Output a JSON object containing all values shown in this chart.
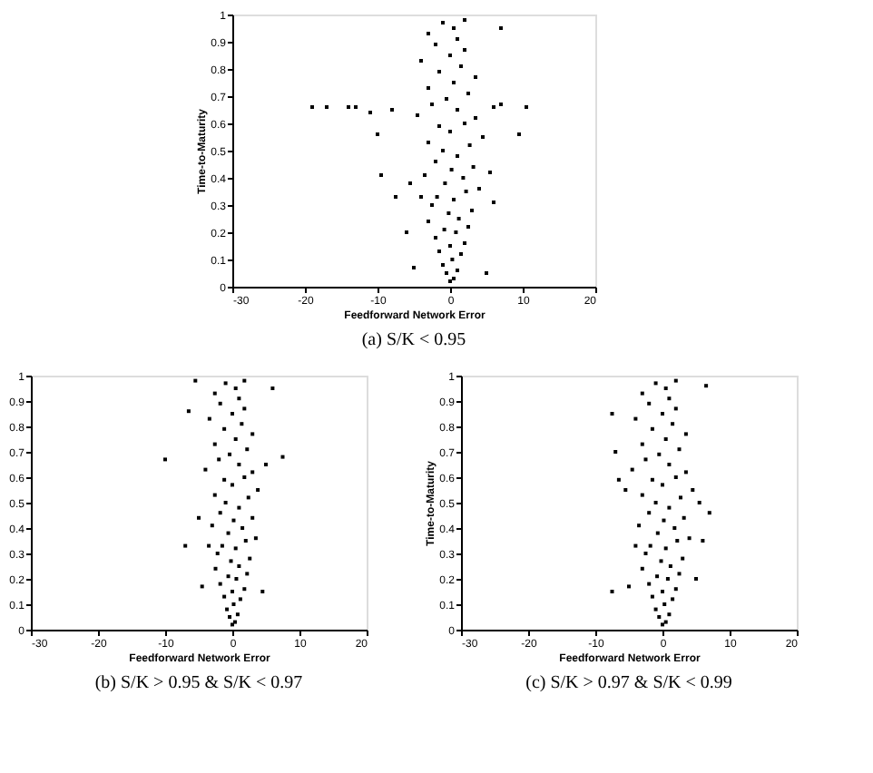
{
  "chart_data": [
    {
      "type": "scatter",
      "title": "(a)  S/K < 0.95",
      "xlabel": "Feedforward Network Error",
      "ylabel": "Time-to-Maturity",
      "color": "#000000",
      "marker": "square",
      "xlim": [
        -30,
        20
      ],
      "ylim": [
        0,
        1
      ],
      "xticks": [
        -30,
        -20,
        -10,
        0,
        10,
        20
      ],
      "yticks": [
        0,
        0.1,
        0.2,
        0.3,
        0.4,
        0.5,
        0.6,
        0.7,
        0.8,
        0.9,
        1
      ],
      "x": [
        0,
        0.5,
        -0.5,
        1,
        -1,
        0.3,
        1.5,
        -1.5,
        0,
        2,
        -2,
        0.8,
        -0.8,
        2.5,
        -3,
        1.2,
        -0.2,
        3,
        -2.5,
        0.5,
        -1.8,
        2.2,
        -4,
        4,
        -0.7,
        1.8,
        -3.5,
        0.2,
        3.2,
        -2,
        1,
        -1,
        2.7,
        -3,
        4.5,
        0,
        -1.5,
        2,
        3.5,
        -4.5,
        1,
        -2.5,
        6,
        -0.5,
        2.5,
        -3,
        0.5,
        3.5,
        -1.5,
        1.5,
        -4,
        0,
        2,
        -2,
        1,
        -3,
        0.5,
        -1,
        2,
        -19,
        -17,
        -14,
        -13,
        -11,
        -10,
        -9.5,
        -8,
        -7.5,
        10.5,
        9.5,
        7,
        6,
        -5,
        5,
        -6,
        5.5,
        -5.5,
        7
      ],
      "values": [
        0.02,
        0.03,
        0.05,
        0.06,
        0.08,
        0.1,
        0.12,
        0.13,
        0.15,
        0.16,
        0.18,
        0.2,
        0.21,
        0.22,
        0.24,
        0.25,
        0.27,
        0.28,
        0.3,
        0.32,
        0.33,
        0.35,
        0.33,
        0.36,
        0.38,
        0.4,
        0.41,
        0.43,
        0.44,
        0.46,
        0.48,
        0.5,
        0.52,
        0.53,
        0.55,
        0.57,
        0.59,
        0.6,
        0.62,
        0.63,
        0.65,
        0.67,
        0.66,
        0.69,
        0.71,
        0.73,
        0.75,
        0.77,
        0.79,
        0.81,
        0.83,
        0.85,
        0.87,
        0.89,
        0.91,
        0.93,
        0.95,
        0.97,
        0.98,
        0.66,
        0.66,
        0.66,
        0.66,
        0.64,
        0.56,
        0.41,
        0.65,
        0.33,
        0.66,
        0.56,
        0.67,
        0.31,
        0.07,
        0.05,
        0.2,
        0.42,
        0.38,
        0.95
      ]
    },
    {
      "type": "scatter",
      "title": "(b)  S/K > 0.95 & S/K < 0.97",
      "xlabel": "Feedforward Network Error",
      "color": "#000000",
      "marker": "square",
      "xlim": [
        -30,
        20
      ],
      "ylim": [
        0,
        1
      ],
      "xticks": [
        -30,
        -20,
        -10,
        0,
        10,
        20
      ],
      "yticks": [
        0,
        0.1,
        0.2,
        0.3,
        0.4,
        0.5,
        0.6,
        0.7,
        0.8,
        0.9,
        1
      ],
      "x": [
        0,
        0.4,
        -0.4,
        0.8,
        -0.8,
        0.2,
        1.2,
        -1.2,
        0,
        1.8,
        -1.8,
        0.6,
        -0.6,
        2.2,
        -2.5,
        1,
        -0.2,
        2.6,
        -2.2,
        0.5,
        -1.5,
        2,
        -3.5,
        3.5,
        -0.6,
        1.5,
        -3,
        0.2,
        3,
        -1.8,
        1,
        -1,
        2.4,
        -2.6,
        3.8,
        0,
        -1.2,
        1.8,
        3,
        -4,
        1,
        -2,
        -0.4,
        2.2,
        -2.6,
        0.5,
        3,
        -1.2,
        1.4,
        -3.4,
        0,
        1.8,
        -1.8,
        1,
        -2.6,
        0.5,
        -1,
        1.8,
        -10,
        -7,
        7.5,
        -6.5,
        6,
        -5.5,
        -4.5,
        4.5,
        -5,
        5
      ],
      "values": [
        0.02,
        0.03,
        0.05,
        0.06,
        0.08,
        0.1,
        0.12,
        0.13,
        0.15,
        0.16,
        0.18,
        0.2,
        0.21,
        0.22,
        0.24,
        0.25,
        0.27,
        0.28,
        0.3,
        0.32,
        0.33,
        0.35,
        0.33,
        0.36,
        0.38,
        0.4,
        0.41,
        0.43,
        0.44,
        0.46,
        0.48,
        0.5,
        0.52,
        0.53,
        0.55,
        0.57,
        0.59,
        0.6,
        0.62,
        0.63,
        0.65,
        0.67,
        0.69,
        0.71,
        0.73,
        0.75,
        0.77,
        0.79,
        0.81,
        0.83,
        0.85,
        0.87,
        0.89,
        0.91,
        0.93,
        0.95,
        0.97,
        0.98,
        0.67,
        0.33,
        0.68,
        0.86,
        0.95,
        0.98,
        0.17,
        0.15,
        0.44,
        0.65
      ]
    },
    {
      "type": "scatter",
      "title": "(c)  S/K > 0.97 & S/K < 0.99",
      "xlabel": "Feedforward Network Error",
      "ylabel": "Time-to-Maturity",
      "color": "#000000",
      "marker": "square",
      "xlim": [
        -30,
        20
      ],
      "ylim": [
        0,
        1
      ],
      "xticks": [
        -30,
        -20,
        -10,
        0,
        10,
        20
      ],
      "yticks": [
        0,
        0.1,
        0.2,
        0.3,
        0.4,
        0.5,
        0.6,
        0.7,
        0.8,
        0.9,
        1
      ],
      "x": [
        0,
        0.5,
        -0.5,
        1,
        -1,
        0.3,
        1.5,
        -1.5,
        0,
        2,
        -2,
        0.8,
        -0.8,
        2.5,
        -3,
        1.2,
        -0.2,
        3,
        -2.5,
        0.5,
        -1.8,
        2.2,
        -4,
        4,
        -0.7,
        1.8,
        -3.5,
        0.2,
        3.2,
        -2,
        1,
        -1,
        2.7,
        -3,
        4.5,
        0,
        -1.5,
        2,
        3.5,
        -4.5,
        1,
        -2.5,
        -0.5,
        2.5,
        -3,
        0.5,
        3.5,
        -1.5,
        1.5,
        -4,
        0,
        2,
        -2,
        1,
        -3,
        0.5,
        -1,
        2,
        -7.5,
        -7,
        -7.5,
        -6.5,
        6,
        7,
        6.5,
        -5,
        5,
        -5.5,
        5.5
      ],
      "values": [
        0.02,
        0.03,
        0.05,
        0.06,
        0.08,
        0.1,
        0.12,
        0.13,
        0.15,
        0.16,
        0.18,
        0.2,
        0.21,
        0.22,
        0.24,
        0.25,
        0.27,
        0.28,
        0.3,
        0.32,
        0.33,
        0.35,
        0.33,
        0.36,
        0.38,
        0.4,
        0.41,
        0.43,
        0.44,
        0.46,
        0.48,
        0.5,
        0.52,
        0.53,
        0.55,
        0.57,
        0.59,
        0.6,
        0.62,
        0.63,
        0.65,
        0.67,
        0.69,
        0.71,
        0.73,
        0.75,
        0.77,
        0.79,
        0.81,
        0.83,
        0.85,
        0.87,
        0.89,
        0.91,
        0.93,
        0.95,
        0.97,
        0.98,
        0.85,
        0.7,
        0.15,
        0.59,
        0.35,
        0.46,
        0.96,
        0.17,
        0.2,
        0.55,
        0.5
      ]
    }
  ]
}
